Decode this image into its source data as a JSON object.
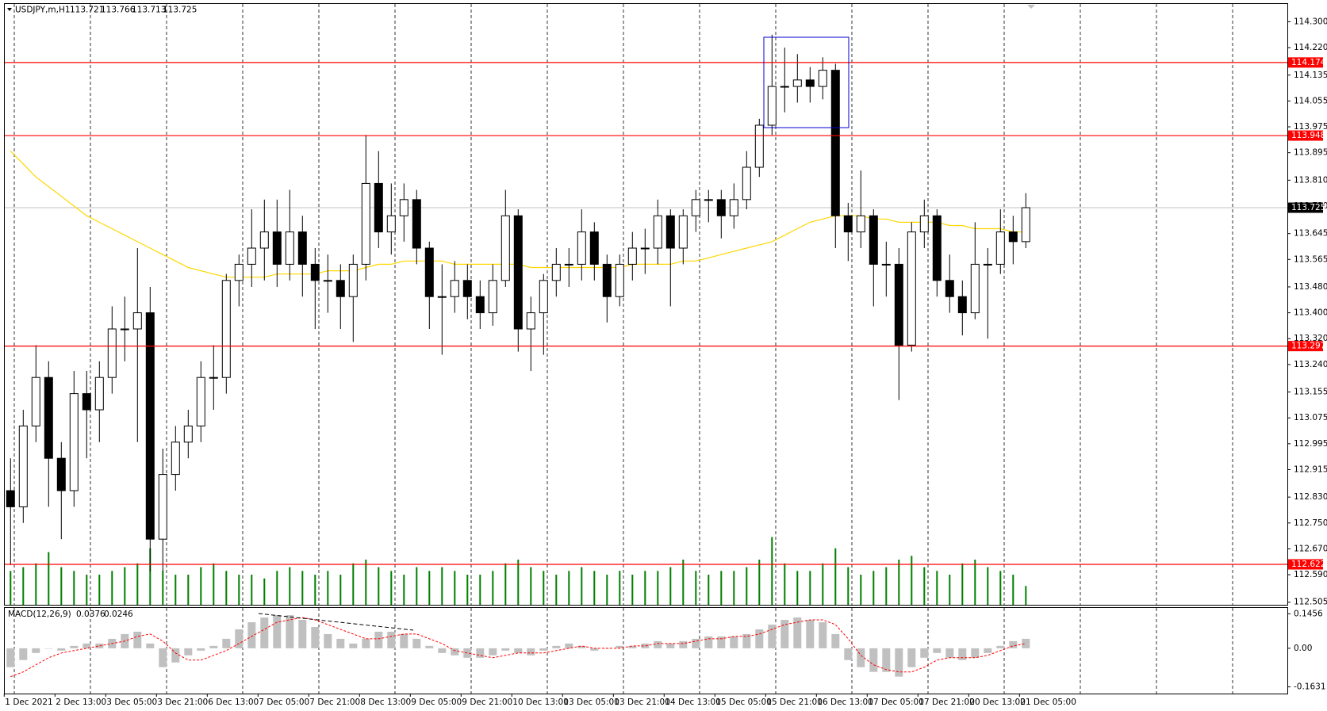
{
  "chart_data": {
    "type": "candlestick",
    "symbol": "USDJPY,m,H1",
    "ohlc": [
      113.721,
      113.766,
      113.713,
      113.725
    ],
    "ylim": [
      112.497,
      114.355
    ],
    "yticks": [
      {
        "value": 114.3,
        "label": "114.300"
      },
      {
        "value": 114.22,
        "label": "114.220"
      },
      {
        "value": 114.135,
        "label": "114.135"
      },
      {
        "value": 114.055,
        "label": "114.055"
      },
      {
        "value": 113.975,
        "label": "113.975"
      },
      {
        "value": 113.895,
        "label": "113.895"
      },
      {
        "value": 113.81,
        "label": "113.810"
      },
      {
        "value": 113.73,
        "label": "113.730"
      },
      {
        "value": 113.645,
        "label": "113.645"
      },
      {
        "value": 113.565,
        "label": "113.565"
      },
      {
        "value": 113.48,
        "label": "113.480"
      },
      {
        "value": 113.4,
        "label": "113.400"
      },
      {
        "value": 113.32,
        "label": "113.320"
      },
      {
        "value": 113.24,
        "label": "113.240"
      },
      {
        "value": 113.155,
        "label": "113.155"
      },
      {
        "value": 113.075,
        "label": "113.075"
      },
      {
        "value": 112.995,
        "label": "112.995"
      },
      {
        "value": 112.915,
        "label": "112.915"
      },
      {
        "value": 112.83,
        "label": "112.830"
      },
      {
        "value": 112.75,
        "label": "112.750"
      },
      {
        "value": 112.67,
        "label": "112.670"
      },
      {
        "value": 112.59,
        "label": "112.590"
      },
      {
        "value": 112.505,
        "label": "112.505"
      }
    ],
    "grid": true,
    "levels": [
      {
        "value": 114.174,
        "color": "#ff0000"
      },
      {
        "value": 113.948,
        "color": "#ff0000"
      },
      {
        "value": 113.297,
        "color": "#ff0000"
      },
      {
        "value": 112.622,
        "color": "#ff0000"
      }
    ],
    "current_price": {
      "value": 113.725,
      "color": "#c0c0c0"
    },
    "categories": [
      "1 Dec 2021",
      "2 Dec 13:00",
      "3 Dec 05:00",
      "3 Dec 21:00",
      "6 Dec 13:00",
      "7 Dec 05:00",
      "7 Dec 21:00",
      "8 Dec 13:00",
      "9 Dec 05:00",
      "9 Dec 21:00",
      "10 Dec 13:00",
      "13 Dec 05:00",
      "13 Dec 21:00",
      "14 Dec 13:00",
      "15 Dec 05:00",
      "15 Dec 21:00",
      "16 Dec 13:00",
      "17 Dec 05:00",
      "17 Dec 21:00",
      "20 Dec 13:00",
      "21 Dec 05:00"
    ],
    "candles": [
      [
        112.85,
        112.95,
        112.62,
        112.8
      ],
      [
        112.8,
        113.1,
        112.75,
        113.05
      ],
      [
        113.05,
        113.3,
        113.0,
        113.2
      ],
      [
        113.2,
        113.25,
        112.8,
        112.95
      ],
      [
        112.95,
        113.0,
        112.7,
        112.85
      ],
      [
        112.85,
        113.22,
        112.8,
        113.15
      ],
      [
        113.15,
        113.22,
        112.95,
        113.1
      ],
      [
        113.1,
        113.25,
        113.0,
        113.2
      ],
      [
        113.2,
        113.42,
        113.15,
        113.35
      ],
      [
        113.35,
        113.45,
        113.25,
        113.35
      ],
      [
        113.35,
        113.6,
        113.0,
        113.4
      ],
      [
        113.4,
        113.48,
        112.6,
        112.7
      ],
      [
        112.7,
        112.98,
        112.6,
        112.9
      ],
      [
        112.9,
        113.05,
        112.85,
        113.0
      ],
      [
        113.0,
        113.1,
        112.95,
        113.05
      ],
      [
        113.05,
        113.25,
        113.0,
        113.2
      ],
      [
        113.2,
        113.3,
        113.1,
        113.2
      ],
      [
        113.2,
        113.52,
        113.15,
        113.5
      ],
      [
        113.5,
        113.58,
        113.42,
        113.55
      ],
      [
        113.55,
        113.72,
        113.48,
        113.6
      ],
      [
        113.6,
        113.75,
        113.5,
        113.65
      ],
      [
        113.65,
        113.75,
        113.48,
        113.55
      ],
      [
        113.55,
        113.78,
        113.5,
        113.65
      ],
      [
        113.65,
        113.7,
        113.45,
        113.55
      ],
      [
        113.55,
        113.6,
        113.35,
        113.5
      ],
      [
        113.5,
        113.58,
        113.4,
        113.5
      ],
      [
        113.5,
        113.55,
        113.35,
        113.45
      ],
      [
        113.45,
        113.58,
        113.31,
        113.55
      ],
      [
        113.55,
        113.95,
        113.5,
        113.8
      ],
      [
        113.8,
        113.9,
        113.6,
        113.65
      ],
      [
        113.65,
        113.8,
        113.58,
        113.7
      ],
      [
        113.7,
        113.8,
        113.62,
        113.75
      ],
      [
        113.75,
        113.78,
        113.55,
        113.6
      ],
      [
        113.6,
        113.62,
        113.35,
        113.45
      ],
      [
        113.45,
        113.55,
        113.27,
        113.45
      ],
      [
        113.45,
        113.56,
        113.4,
        113.5
      ],
      [
        113.5,
        113.55,
        113.38,
        113.45
      ],
      [
        113.45,
        113.5,
        113.35,
        113.4
      ],
      [
        113.4,
        113.55,
        113.36,
        113.5
      ],
      [
        113.5,
        113.78,
        113.48,
        113.7
      ],
      [
        113.7,
        113.72,
        113.28,
        113.35
      ],
      [
        113.35,
        113.45,
        113.22,
        113.4
      ],
      [
        113.4,
        113.52,
        113.27,
        113.5
      ],
      [
        113.5,
        113.6,
        113.45,
        113.55
      ],
      [
        113.55,
        113.6,
        113.48,
        113.55
      ],
      [
        113.55,
        113.72,
        113.5,
        113.65
      ],
      [
        113.65,
        113.68,
        113.5,
        113.55
      ],
      [
        113.55,
        113.58,
        113.37,
        113.45
      ],
      [
        113.45,
        113.58,
        113.42,
        113.55
      ],
      [
        113.55,
        113.65,
        113.5,
        113.6
      ],
      [
        113.6,
        113.66,
        113.52,
        113.6
      ],
      [
        113.6,
        113.75,
        113.55,
        113.7
      ],
      [
        113.7,
        113.72,
        113.42,
        113.6
      ],
      [
        113.6,
        113.72,
        113.55,
        113.7
      ],
      [
        113.7,
        113.78,
        113.65,
        113.75
      ],
      [
        113.75,
        113.78,
        113.68,
        113.75
      ],
      [
        113.75,
        113.78,
        113.63,
        113.7
      ],
      [
        113.7,
        113.8,
        113.66,
        113.75
      ],
      [
        113.75,
        113.9,
        113.72,
        113.85
      ],
      [
        113.85,
        114.0,
        113.82,
        113.98
      ],
      [
        113.98,
        114.26,
        113.95,
        114.1
      ],
      [
        114.1,
        114.22,
        114.02,
        114.1
      ],
      [
        114.1,
        114.2,
        114.05,
        114.12
      ],
      [
        114.12,
        114.16,
        114.05,
        114.1
      ],
      [
        114.1,
        114.19,
        114.06,
        114.15
      ],
      [
        114.15,
        114.17,
        113.6,
        113.7
      ],
      [
        113.7,
        113.74,
        113.56,
        113.65
      ],
      [
        113.65,
        113.84,
        113.6,
        113.7
      ],
      [
        113.7,
        113.72,
        113.42,
        113.55
      ],
      [
        113.55,
        113.62,
        113.45,
        113.55
      ],
      [
        113.55,
        113.6,
        113.13,
        113.3
      ],
      [
        113.3,
        113.68,
        113.28,
        113.65
      ],
      [
        113.65,
        113.75,
        113.6,
        113.7
      ],
      [
        113.7,
        113.72,
        113.45,
        113.5
      ],
      [
        113.5,
        113.58,
        113.4,
        113.45
      ],
      [
        113.45,
        113.5,
        113.33,
        113.4
      ],
      [
        113.4,
        113.68,
        113.38,
        113.55
      ],
      [
        113.55,
        113.6,
        113.32,
        113.55
      ],
      [
        113.55,
        113.72,
        113.52,
        113.65
      ],
      [
        113.65,
        113.7,
        113.55,
        113.62
      ],
      [
        113.62,
        113.77,
        113.6,
        113.725
      ]
    ],
    "ma": {
      "color": "#ffd700",
      "values": [
        113.9,
        113.86,
        113.82,
        113.79,
        113.76,
        113.73,
        113.7,
        113.68,
        113.66,
        113.64,
        113.62,
        113.6,
        113.58,
        113.56,
        113.54,
        113.53,
        113.52,
        113.51,
        113.51,
        113.51,
        113.51,
        113.52,
        113.52,
        113.52,
        113.52,
        113.53,
        113.53,
        113.53,
        113.54,
        113.55,
        113.55,
        113.56,
        113.56,
        113.56,
        113.56,
        113.55,
        113.55,
        113.55,
        113.55,
        113.55,
        113.55,
        113.54,
        113.54,
        113.54,
        113.54,
        113.54,
        113.54,
        113.54,
        113.54,
        113.55,
        113.55,
        113.55,
        113.55,
        113.56,
        113.56,
        113.57,
        113.58,
        113.59,
        113.6,
        113.61,
        113.62,
        113.64,
        113.66,
        113.68,
        113.69,
        113.7,
        113.7,
        113.7,
        113.69,
        113.69,
        113.68,
        113.68,
        113.68,
        113.68,
        113.67,
        113.67,
        113.66,
        113.66,
        113.66,
        113.65,
        113.65
      ]
    },
    "volumes": {
      "color": "#008000",
      "values": [
        45,
        50,
        55,
        70,
        50,
        45,
        40,
        40,
        45,
        50,
        55,
        75,
        45,
        40,
        40,
        50,
        55,
        45,
        40,
        40,
        35,
        45,
        50,
        45,
        40,
        45,
        40,
        55,
        60,
        50,
        45,
        40,
        50,
        45,
        50,
        45,
        40,
        40,
        45,
        55,
        60,
        50,
        45,
        40,
        45,
        50,
        45,
        40,
        45,
        40,
        45,
        45,
        50,
        60,
        45,
        40,
        45,
        45,
        50,
        60,
        90,
        55,
        45,
        45,
        55,
        75,
        50,
        40,
        45,
        50,
        60,
        65,
        50,
        45,
        40,
        55,
        60,
        50,
        45,
        40,
        25
      ]
    },
    "macd": {
      "name": "MACD(12,26,9)",
      "current": [
        0.0376,
        0.0246
      ],
      "ylim": [
        -0.1915,
        0.1704
      ],
      "yticks": [
        0.1456,
        {
          "value": 0,
          "label": "0.00"
        },
        -0.1631
      ],
      "histogram_color": "#c0c0c0",
      "signal_color": "#ff0000",
      "histogram": [
        -0.08,
        -0.05,
        -0.02,
        0.0,
        -0.01,
        0.01,
        0.02,
        0.02,
        0.04,
        0.06,
        0.07,
        0.02,
        -0.08,
        -0.06,
        -0.03,
        -0.01,
        0.01,
        0.04,
        0.08,
        0.11,
        0.13,
        0.14,
        0.14,
        0.12,
        0.09,
        0.06,
        0.04,
        0.02,
        0.04,
        0.07,
        0.07,
        0.06,
        0.04,
        0.01,
        -0.02,
        -0.03,
        -0.04,
        -0.04,
        -0.03,
        -0.01,
        -0.02,
        -0.03,
        -0.01,
        0.01,
        0.02,
        0.01,
        -0.01,
        0.0,
        0.01,
        0.01,
        0.02,
        0.03,
        0.02,
        0.03,
        0.04,
        0.05,
        0.05,
        0.05,
        0.06,
        0.08,
        0.1,
        0.12,
        0.13,
        0.12,
        0.11,
        0.06,
        -0.05,
        -0.08,
        -0.1,
        -0.1,
        -0.12,
        -0.08,
        -0.04,
        -0.02,
        -0.04,
        -0.05,
        -0.04,
        -0.02,
        0.01,
        0.03,
        0.04
      ],
      "signal": [
        -0.12,
        -0.1,
        -0.07,
        -0.04,
        -0.02,
        -0.01,
        0.0,
        0.01,
        0.02,
        0.03,
        0.05,
        0.06,
        0.03,
        -0.02,
        -0.05,
        -0.05,
        -0.03,
        -0.01,
        0.02,
        0.05,
        0.08,
        0.11,
        0.12,
        0.13,
        0.12,
        0.1,
        0.08,
        0.06,
        0.04,
        0.04,
        0.05,
        0.06,
        0.06,
        0.04,
        0.02,
        -0.01,
        -0.02,
        -0.03,
        -0.04,
        -0.03,
        -0.02,
        -0.02,
        -0.02,
        -0.01,
        0.0,
        0.01,
        0.0,
        0.0,
        0.0,
        0.01,
        0.01,
        0.02,
        0.02,
        0.02,
        0.03,
        0.04,
        0.04,
        0.05,
        0.05,
        0.06,
        0.08,
        0.1,
        0.11,
        0.12,
        0.12,
        0.1,
        0.04,
        -0.03,
        -0.07,
        -0.09,
        -0.1,
        -0.1,
        -0.08,
        -0.05,
        -0.04,
        -0.04,
        -0.04,
        -0.03,
        -0.01,
        0.01,
        0.02
      ]
    }
  }
}
